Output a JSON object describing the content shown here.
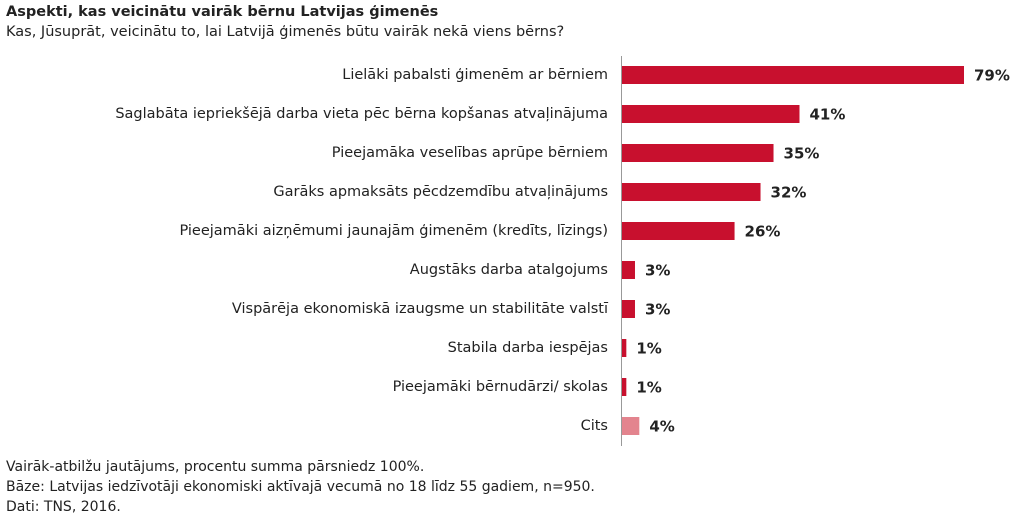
{
  "chart_data": {
    "type": "bar",
    "orientation": "horizontal",
    "title": "Aspekti, kas veicinātu vairāk bērnu Latvijas ģimenēs",
    "subtitle": "Kas, Jūsuprāt, veicinātu to, lai Latvijā ģimenēs būtu vairāk nekā viens bērns?",
    "categories": [
      "Lielāki pabalsti ģimenēm ar bērniem",
      "Saglabāta iepriekšējā darba vieta pēc bērna kopšanas atvaļinājuma",
      "Pieejamāka veselības aprūpe bērniem",
      "Garāks apmaksāts pēcdzemdību atvaļinājums",
      "Pieejamāki aizņēmumi jaunajām ģimenēm (kredīts, līzings)",
      "Augstāks darba atalgojums",
      "Vispārēja ekonomiskā izaugsme un stabilitāte valstī",
      "Stabila darba iespējas",
      "Pieejamāki bērnudārzi/ skolas",
      "Cits"
    ],
    "values": [
      79,
      41,
      35,
      32,
      26,
      3,
      3,
      1,
      1,
      4
    ],
    "value_labels": [
      "79%",
      "41%",
      "35%",
      "32%",
      "26%",
      "3%",
      "3%",
      "1%",
      "1%",
      "4%"
    ],
    "colors": [
      "#c8102e",
      "#c8102e",
      "#c8102e",
      "#c8102e",
      "#c8102e",
      "#c8102e",
      "#c8102e",
      "#c8102e",
      "#c8102e",
      "#e3848e"
    ],
    "notes": [
      "Vairāk-atbilžu jautājums, procentu summa pārsniedz 100%.",
      "Bāze: Latvijas iedzīvotāji ekonomiski aktīvajā vecumā no 18 līdz 55 gadiem, n=950.",
      "Dati: TNS, 2016."
    ]
  }
}
